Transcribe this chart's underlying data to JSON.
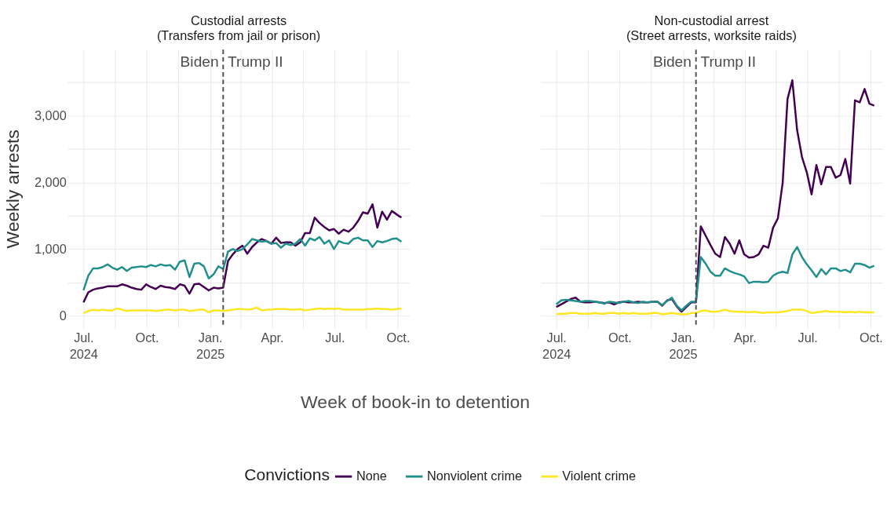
{
  "chart_data": [
    {
      "type": "line",
      "title": "Custodial arrests",
      "subtitle": "(Transfers from jail or prison)",
      "ylabel": "Weekly arrests",
      "xlabel": "Week of book-in to detention",
      "legend_title": "Convictions",
      "legend": "bottom",
      "grid": true,
      "line_style": "solid",
      "marker": "none",
      "x": [
        "2024-07-01",
        "2024-07-08",
        "2024-07-15",
        "2024-07-22",
        "2024-07-29",
        "2024-08-05",
        "2024-08-12",
        "2024-08-19",
        "2024-08-26",
        "2024-09-02",
        "2024-09-09",
        "2024-09-16",
        "2024-09-23",
        "2024-09-30",
        "2024-10-07",
        "2024-10-14",
        "2024-10-21",
        "2024-10-28",
        "2024-11-04",
        "2024-11-11",
        "2024-11-18",
        "2024-11-25",
        "2024-12-02",
        "2024-12-09",
        "2024-12-16",
        "2024-12-23",
        "2024-12-30",
        "2025-01-06",
        "2025-01-13",
        "2025-01-20",
        "2025-01-27",
        "2025-02-03",
        "2025-02-10",
        "2025-02-17",
        "2025-02-24",
        "2025-03-03",
        "2025-03-10",
        "2025-03-17",
        "2025-03-24",
        "2025-03-31",
        "2025-04-07",
        "2025-04-14",
        "2025-04-21",
        "2025-04-28",
        "2025-05-05",
        "2025-05-12",
        "2025-05-19",
        "2025-05-26",
        "2025-06-02",
        "2025-06-09",
        "2025-06-16",
        "2025-06-23",
        "2025-06-30",
        "2025-07-07",
        "2025-07-14",
        "2025-07-21",
        "2025-07-28",
        "2025-08-04",
        "2025-08-11",
        "2025-08-18",
        "2025-08-25",
        "2025-09-01",
        "2025-09-08",
        "2025-09-15",
        "2025-09-22",
        "2025-09-29",
        "2025-10-06"
      ],
      "xlim": [
        "2024-06-08",
        "2025-10-18"
      ],
      "xticks": [
        {
          "value": "2024-07-01",
          "label": "Jul.\n2024"
        },
        {
          "value": "2024-08-16",
          "label": null
        },
        {
          "value": "2024-10-01",
          "label": "Oct."
        },
        {
          "value": "2024-11-16",
          "label": null
        },
        {
          "value": "2025-01-01",
          "label": "Jan.\n2025"
        },
        {
          "value": "2025-02-14",
          "label": null
        },
        {
          "value": "2025-04-01",
          "label": "Apr."
        },
        {
          "value": "2025-05-16",
          "label": null
        },
        {
          "value": "2025-07-01",
          "label": "Jul."
        },
        {
          "value": "2025-08-16",
          "label": null
        },
        {
          "value": "2025-10-01",
          "label": "Oct."
        }
      ],
      "ylim": [
        -180,
        3990
      ],
      "yticks": [
        {
          "value": 0,
          "label": "0"
        },
        {
          "value": 500,
          "label": null
        },
        {
          "value": 1000,
          "label": "1,000"
        },
        {
          "value": 1500,
          "label": null
        },
        {
          "value": 2000,
          "label": "2,000"
        },
        {
          "value": 2500,
          "label": null
        },
        {
          "value": 3000,
          "label": "3,000"
        },
        {
          "value": 3500,
          "label": null
        }
      ],
      "ref_lines": [
        {
          "axis": "x",
          "value": "2025-01-20",
          "line_style": "dashed",
          "color": "#4d4d4d"
        }
      ],
      "annotations": [
        {
          "text": "Biden",
          "x": "2025-01-20",
          "y": 3800
        },
        {
          "text": "Trump II",
          "x": "2025-01-20",
          "y": 3800
        }
      ],
      "series": [
        {
          "name": "None",
          "color": "#440154",
          "values": [
            200,
            350,
            390,
            410,
            420,
            440,
            440,
            440,
            470,
            450,
            420,
            400,
            390,
            470,
            430,
            400,
            450,
            430,
            420,
            400,
            470,
            450,
            330,
            470,
            480,
            430,
            380,
            420,
            410,
            420,
            820,
            920,
            1000,
            1050,
            930,
            1030,
            1100,
            1150,
            1120,
            1080,
            1170,
            1090,
            1100,
            1100,
            1050,
            1100,
            1240,
            1240,
            1470,
            1390,
            1330,
            1280,
            1300,
            1230,
            1290,
            1260,
            1320,
            1420,
            1550,
            1530,
            1670,
            1320,
            1560,
            1440,
            1570,
            1520,
            1470
          ]
        },
        {
          "name": "Nonviolent crime",
          "color": "#21908c",
          "values": [
            380,
            600,
            710,
            710,
            730,
            770,
            720,
            690,
            730,
            670,
            720,
            730,
            740,
            730,
            760,
            740,
            770,
            750,
            760,
            690,
            810,
            830,
            580,
            780,
            790,
            740,
            560,
            620,
            740,
            700,
            960,
            1000,
            970,
            1000,
            1070,
            1150,
            1130,
            1110,
            1120,
            1080,
            1090,
            1020,
            1080,
            1060,
            1080,
            1150,
            1050,
            1160,
            1130,
            1180,
            1080,
            1130,
            1000,
            1120,
            1090,
            1080,
            1150,
            1170,
            1130,
            1130,
            1030,
            1120,
            1100,
            1120,
            1150,
            1160,
            1110
          ]
        },
        {
          "name": "Violent crime",
          "color": "#fde725",
          "values": [
            40,
            70,
            90,
            80,
            90,
            80,
            80,
            110,
            90,
            70,
            80,
            80,
            80,
            80,
            80,
            70,
            80,
            90,
            90,
            80,
            90,
            90,
            70,
            80,
            90,
            90,
            50,
            80,
            80,
            70,
            80,
            90,
            100,
            100,
            90,
            100,
            120,
            80,
            90,
            90,
            100,
            100,
            100,
            90,
            90,
            100,
            80,
            90,
            100,
            110,
            100,
            110,
            100,
            110,
            90,
            90,
            90,
            90,
            90,
            100,
            100,
            110,
            100,
            100,
            90,
            100,
            110
          ]
        }
      ]
    },
    {
      "type": "line",
      "title": "Non-custodial arrest",
      "subtitle": "(Street arrests, worksite raids)",
      "grid": true,
      "line_style": "solid",
      "marker": "none",
      "tick_labels": "x",
      "x": [
        "2024-07-01",
        "2024-07-08",
        "2024-07-15",
        "2024-07-22",
        "2024-07-29",
        "2024-08-05",
        "2024-08-12",
        "2024-08-19",
        "2024-08-26",
        "2024-09-02",
        "2024-09-09",
        "2024-09-16",
        "2024-09-23",
        "2024-09-30",
        "2024-10-07",
        "2024-10-14",
        "2024-10-21",
        "2024-10-28",
        "2024-11-04",
        "2024-11-11",
        "2024-11-18",
        "2024-11-25",
        "2024-12-02",
        "2024-12-09",
        "2024-12-16",
        "2024-12-23",
        "2024-12-30",
        "2025-01-06",
        "2025-01-13",
        "2025-01-20",
        "2025-01-27",
        "2025-02-03",
        "2025-02-10",
        "2025-02-17",
        "2025-02-24",
        "2025-03-03",
        "2025-03-10",
        "2025-03-17",
        "2025-03-24",
        "2025-03-31",
        "2025-04-07",
        "2025-04-14",
        "2025-04-21",
        "2025-04-28",
        "2025-05-05",
        "2025-05-12",
        "2025-05-19",
        "2025-05-26",
        "2025-06-02",
        "2025-06-09",
        "2025-06-16",
        "2025-06-23",
        "2025-06-30",
        "2025-07-07",
        "2025-07-14",
        "2025-07-21",
        "2025-07-28",
        "2025-08-04",
        "2025-08-11",
        "2025-08-18",
        "2025-08-25",
        "2025-09-01",
        "2025-09-08",
        "2025-09-15",
        "2025-09-22",
        "2025-09-29",
        "2025-10-06"
      ],
      "xlim": [
        "2024-06-08",
        "2025-10-18"
      ],
      "xticks": [
        {
          "value": "2024-07-01",
          "label": "Jul.\n2024"
        },
        {
          "value": "2024-08-16",
          "label": null
        },
        {
          "value": "2024-10-01",
          "label": "Oct."
        },
        {
          "value": "2024-11-16",
          "label": null
        },
        {
          "value": "2025-01-01",
          "label": "Jan.\n2025"
        },
        {
          "value": "2025-02-14",
          "label": null
        },
        {
          "value": "2025-04-01",
          "label": "Apr."
        },
        {
          "value": "2025-05-16",
          "label": null
        },
        {
          "value": "2025-07-01",
          "label": "Jul."
        },
        {
          "value": "2025-08-16",
          "label": null
        },
        {
          "value": "2025-10-01",
          "label": "Oct."
        }
      ],
      "ylim": [
        -180,
        3990
      ],
      "yticks": [
        {
          "value": 0,
          "label": null
        },
        {
          "value": 500,
          "label": null
        },
        {
          "value": 1000,
          "label": null
        },
        {
          "value": 1500,
          "label": null
        },
        {
          "value": 2000,
          "label": null
        },
        {
          "value": 2500,
          "label": null
        },
        {
          "value": 3000,
          "label": null
        },
        {
          "value": 3500,
          "label": null
        }
      ],
      "ref_lines": [
        {
          "axis": "x",
          "value": "2025-01-20",
          "line_style": "dashed",
          "color": "#4d4d4d"
        }
      ],
      "annotations": [
        {
          "text": "Biden",
          "x": "2025-01-20",
          "y": 3800
        },
        {
          "text": "Trump II",
          "x": "2025-01-20",
          "y": 3800
        }
      ],
      "series": [
        {
          "name": "None",
          "color": "#440154",
          "values": [
            130,
            170,
            210,
            250,
            270,
            210,
            200,
            200,
            210,
            200,
            190,
            200,
            170,
            200,
            210,
            200,
            200,
            210,
            200,
            200,
            210,
            210,
            150,
            230,
            250,
            140,
            60,
            130,
            200,
            200,
            1340,
            1200,
            1060,
            930,
            880,
            1180,
            1080,
            930,
            1130,
            920,
            870,
            880,
            920,
            1050,
            1020,
            1320,
            1460,
            2000,
            3250,
            3530,
            2780,
            2380,
            2150,
            1820,
            2260,
            1970,
            2230,
            2230,
            2070,
            2110,
            2350,
            1980,
            3230,
            3200,
            3400,
            3180,
            3150
          ]
        },
        {
          "name": "Nonviolent crime",
          "color": "#21908c",
          "values": [
            170,
            230,
            240,
            230,
            220,
            210,
            220,
            220,
            210,
            200,
            180,
            210,
            200,
            190,
            210,
            220,
            200,
            190,
            210,
            200,
            210,
            210,
            160,
            220,
            270,
            150,
            80,
            150,
            210,
            210,
            880,
            780,
            660,
            600,
            600,
            710,
            670,
            640,
            620,
            590,
            490,
            510,
            510,
            500,
            510,
            600,
            640,
            660,
            640,
            920,
            1030,
            880,
            770,
            680,
            580,
            700,
            620,
            710,
            710,
            670,
            690,
            650,
            780,
            780,
            760,
            720,
            750
          ]
        },
        {
          "name": "Violent crime",
          "color": "#fde725",
          "values": [
            20,
            30,
            30,
            40,
            40,
            30,
            30,
            30,
            40,
            30,
            30,
            40,
            40,
            30,
            40,
            30,
            40,
            30,
            30,
            30,
            40,
            40,
            20,
            30,
            40,
            30,
            20,
            20,
            40,
            40,
            70,
            80,
            60,
            60,
            70,
            90,
            70,
            60,
            60,
            60,
            50,
            60,
            50,
            40,
            50,
            50,
            50,
            60,
            70,
            90,
            90,
            90,
            70,
            40,
            50,
            60,
            70,
            60,
            60,
            60,
            50,
            60,
            50,
            60,
            50,
            50,
            50
          ]
        }
      ]
    }
  ]
}
